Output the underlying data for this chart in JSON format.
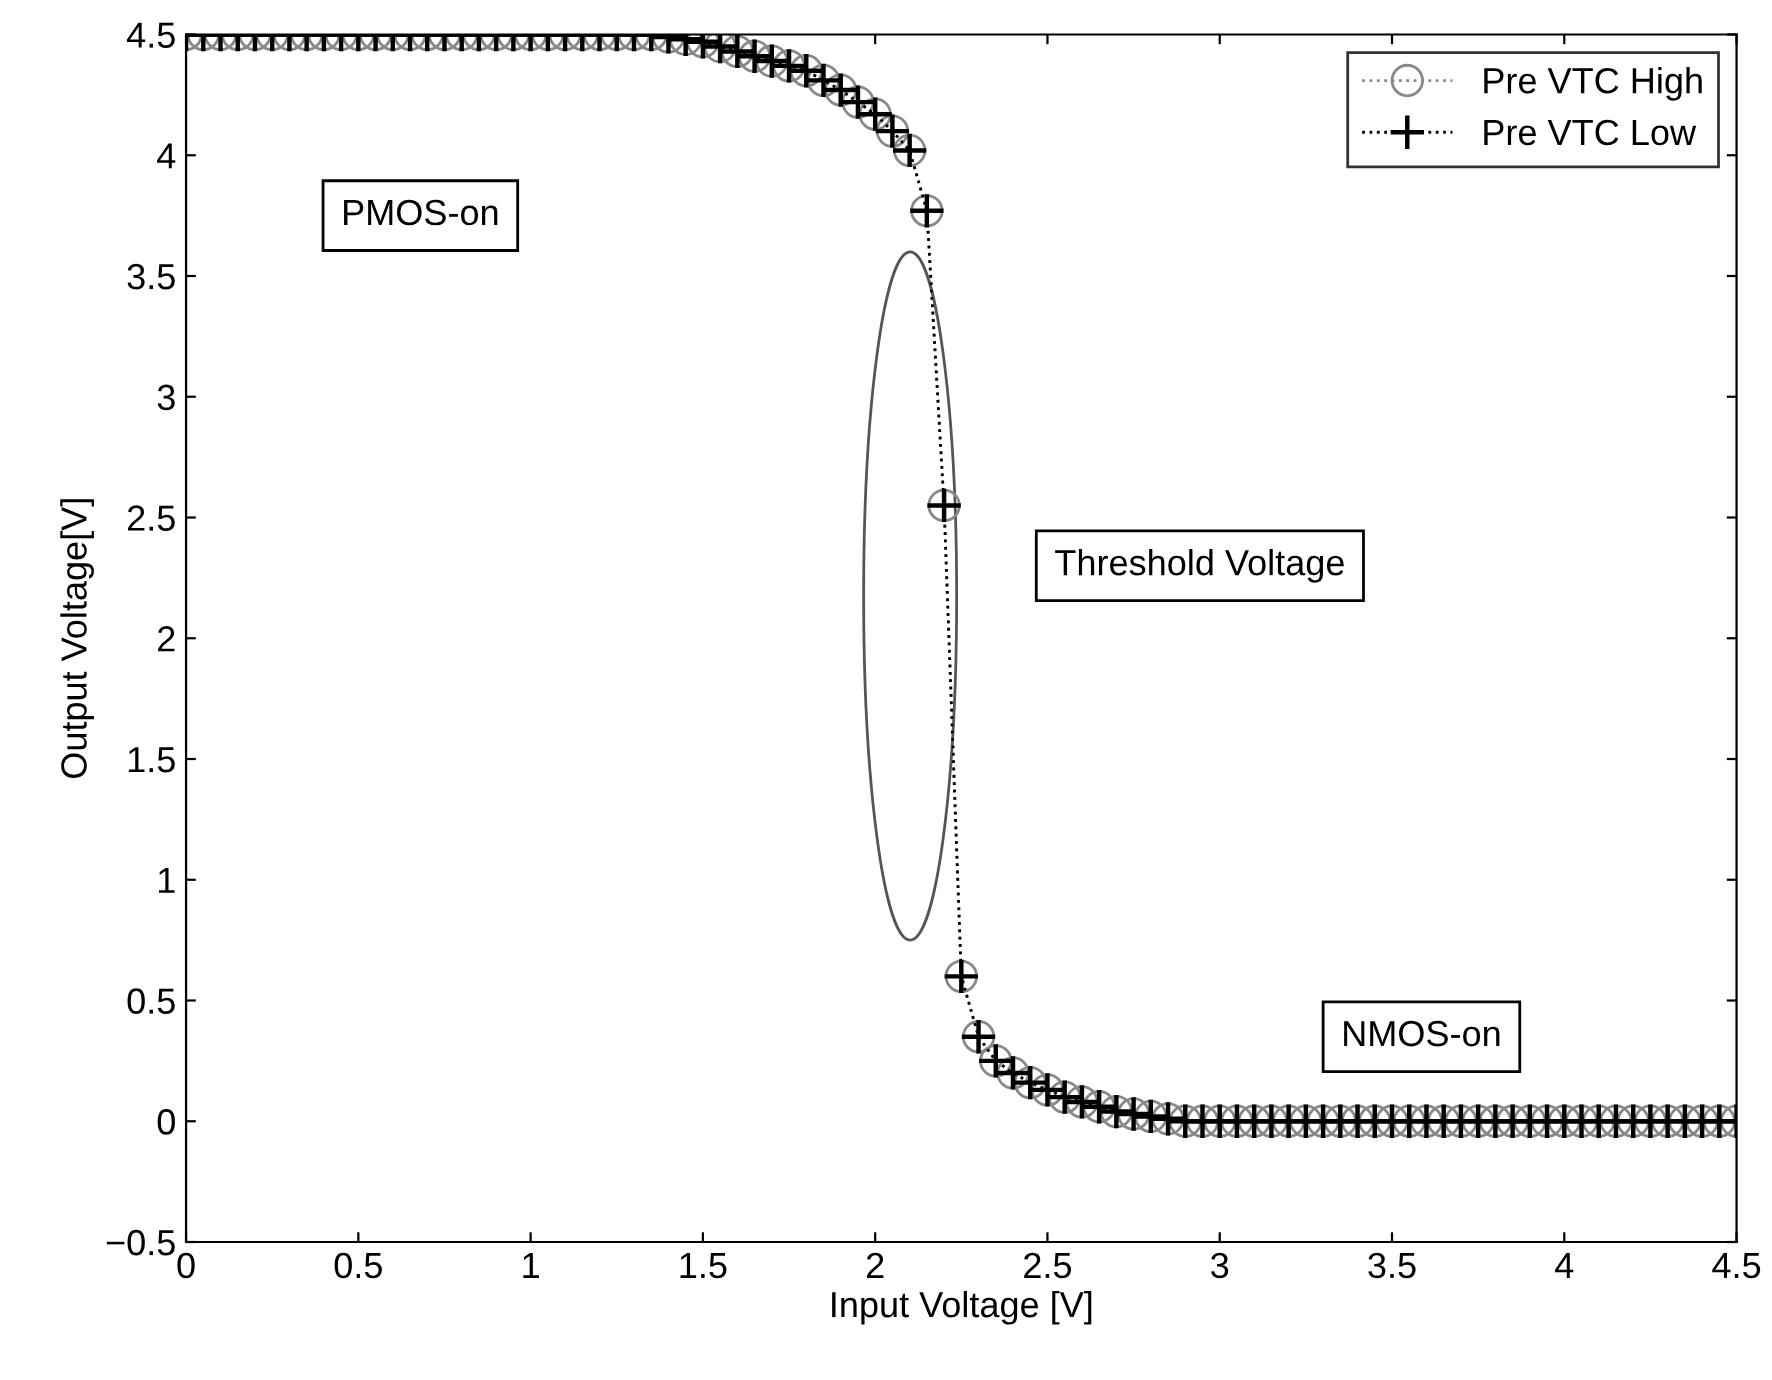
{
  "chart_data": {
    "type": "line",
    "xlabel": "Input Voltage [V]",
    "ylabel": "Output Voltage[V]",
    "x": [
      0,
      0.05,
      0.1,
      0.15,
      0.2,
      0.25,
      0.3,
      0.35,
      0.4,
      0.45,
      0.5,
      0.55,
      0.6,
      0.65,
      0.7,
      0.75,
      0.8,
      0.85,
      0.9,
      0.95,
      1,
      1.05,
      1.1,
      1.15,
      1.2,
      1.25,
      1.3,
      1.35,
      1.4,
      1.45,
      1.5,
      1.55,
      1.6,
      1.65,
      1.7,
      1.75,
      1.8,
      1.85,
      1.9,
      1.95,
      2,
      2.05,
      2.1,
      2.15,
      2.2,
      2.25,
      2.3,
      2.35,
      2.4,
      2.45,
      2.5,
      2.55,
      2.6,
      2.65,
      2.7,
      2.75,
      2.8,
      2.85,
      2.9,
      2.95,
      3,
      3.05,
      3.1,
      3.15,
      3.2,
      3.25,
      3.3,
      3.35,
      3.4,
      3.45,
      3.5,
      3.55,
      3.6,
      3.65,
      3.7,
      3.75,
      3.8,
      3.85,
      3.9,
      3.95,
      4,
      4.05,
      4.1,
      4.15,
      4.2,
      4.25,
      4.3,
      4.35,
      4.4,
      4.45,
      4.5
    ],
    "series": [
      {
        "name": "Pre VTC High",
        "color": "#888888",
        "marker": "circle",
        "values": [
          4.5,
          4.5,
          4.5,
          4.5,
          4.5,
          4.5,
          4.5,
          4.5,
          4.5,
          4.5,
          4.5,
          4.5,
          4.5,
          4.5,
          4.5,
          4.5,
          4.5,
          4.5,
          4.5,
          4.5,
          4.5,
          4.5,
          4.5,
          4.5,
          4.5,
          4.5,
          4.5,
          4.5,
          4.49,
          4.48,
          4.47,
          4.45,
          4.43,
          4.41,
          4.39,
          4.37,
          4.35,
          4.31,
          4.27,
          4.22,
          4.17,
          4.1,
          4.02,
          3.77,
          2.55,
          0.6,
          0.35,
          0.25,
          0.2,
          0.16,
          0.13,
          0.1,
          0.08,
          0.06,
          0.04,
          0.03,
          0.02,
          0.01,
          0,
          0,
          0,
          0,
          0,
          0,
          0,
          0,
          0,
          0,
          0,
          0,
          0,
          0,
          0,
          0,
          0,
          0,
          0,
          0,
          0,
          0,
          0,
          0,
          0,
          0,
          0,
          0,
          0,
          0,
          0,
          0,
          0
        ]
      },
      {
        "name": "Pre VTC Low",
        "color": "#000000",
        "marker": "cross",
        "values": [
          4.5,
          4.5,
          4.5,
          4.5,
          4.5,
          4.5,
          4.5,
          4.5,
          4.5,
          4.5,
          4.5,
          4.5,
          4.5,
          4.5,
          4.5,
          4.5,
          4.5,
          4.5,
          4.5,
          4.5,
          4.5,
          4.5,
          4.5,
          4.5,
          4.5,
          4.5,
          4.5,
          4.5,
          4.49,
          4.48,
          4.47,
          4.45,
          4.43,
          4.41,
          4.39,
          4.37,
          4.35,
          4.31,
          4.27,
          4.22,
          4.17,
          4.1,
          4.02,
          3.77,
          2.55,
          0.6,
          0.35,
          0.25,
          0.2,
          0.16,
          0.13,
          0.1,
          0.08,
          0.06,
          0.04,
          0.03,
          0.02,
          0.01,
          0,
          0,
          0,
          0,
          0,
          0,
          0,
          0,
          0,
          0,
          0,
          0,
          0,
          0,
          0,
          0,
          0,
          0,
          0,
          0,
          0,
          0,
          0,
          0,
          0,
          0,
          0,
          0,
          0,
          0,
          0,
          0,
          0
        ]
      }
    ],
    "line_style": "dotted",
    "legend": "top right",
    "grid": false,
    "xlim": [
      0,
      4.5
    ],
    "xticks": [
      0,
      0.5,
      1,
      1.5,
      2,
      2.5,
      3,
      3.5,
      4,
      4.5
    ],
    "ylim": [
      -0.5,
      4.5
    ],
    "yticks": [
      {
        "value": -0.5,
        "label": "−0.5"
      },
      0,
      0.5,
      1,
      1.5,
      2,
      2.5,
      3,
      3.5,
      4,
      4.5
    ],
    "annotations": [
      "PMOS-on",
      "Threshold Voltage",
      "NMOS-on"
    ]
  }
}
